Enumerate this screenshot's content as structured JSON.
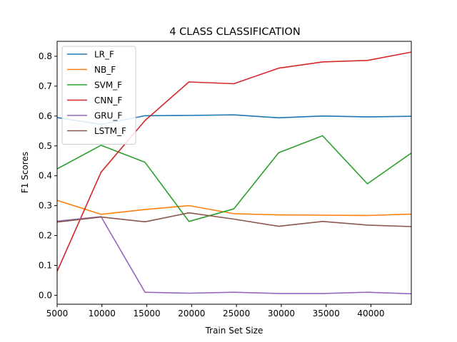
{
  "chart_data": {
    "type": "line",
    "title": "4 CLASS CLASSIFICATION",
    "xlabel": "Train Set Size",
    "ylabel": "F1 Scores",
    "xlim": [
      5000,
      44500
    ],
    "ylim": [
      -0.03,
      0.85
    ],
    "xticks": [
      5000,
      10000,
      15000,
      20000,
      25000,
      30000,
      35000,
      40000
    ],
    "xtick_labels": [
      "5000",
      "10000",
      "15000",
      "20000",
      "25000",
      "30000",
      "35000",
      "40000"
    ],
    "yticks": [
      0.0,
      0.1,
      0.2,
      0.3,
      0.4,
      0.5,
      0.6,
      0.7,
      0.8
    ],
    "ytick_labels": [
      "0.0",
      "0.1",
      "0.2",
      "0.3",
      "0.4",
      "0.5",
      "0.6",
      "0.7",
      "0.8"
    ],
    "grid": false,
    "legend_position": "upper-left",
    "x": [
      5000,
      9900,
      14800,
      19700,
      24700,
      29700,
      34600,
      39600,
      44500
    ],
    "series": [
      {
        "name": "LR_F",
        "color": "#1f77b4",
        "values": [
          0.595,
          0.572,
          0.601,
          0.602,
          0.604,
          0.594,
          0.6,
          0.597,
          0.599
        ]
      },
      {
        "name": "NB_F",
        "color": "#ff7f0e",
        "values": [
          0.318,
          0.271,
          0.287,
          0.3,
          0.273,
          0.269,
          0.268,
          0.267,
          0.272
        ]
      },
      {
        "name": "SVM_F",
        "color": "#2ca02c",
        "values": [
          0.423,
          0.502,
          0.445,
          0.247,
          0.289,
          0.477,
          0.534,
          0.373,
          0.476
        ]
      },
      {
        "name": "CNN_F",
        "color": "#d62728",
        "values": [
          0.08,
          0.412,
          0.585,
          0.714,
          0.708,
          0.76,
          0.781,
          0.786,
          0.814
        ]
      },
      {
        "name": "GRU_F",
        "color": "#9467bd",
        "values": [
          0.248,
          0.263,
          0.01,
          0.007,
          0.01,
          0.006,
          0.006,
          0.01,
          0.005
        ]
      },
      {
        "name": "LSTM_F",
        "color": "#8c564b",
        "values": [
          0.245,
          0.262,
          0.246,
          0.276,
          0.255,
          0.231,
          0.247,
          0.235,
          0.23
        ]
      }
    ]
  }
}
